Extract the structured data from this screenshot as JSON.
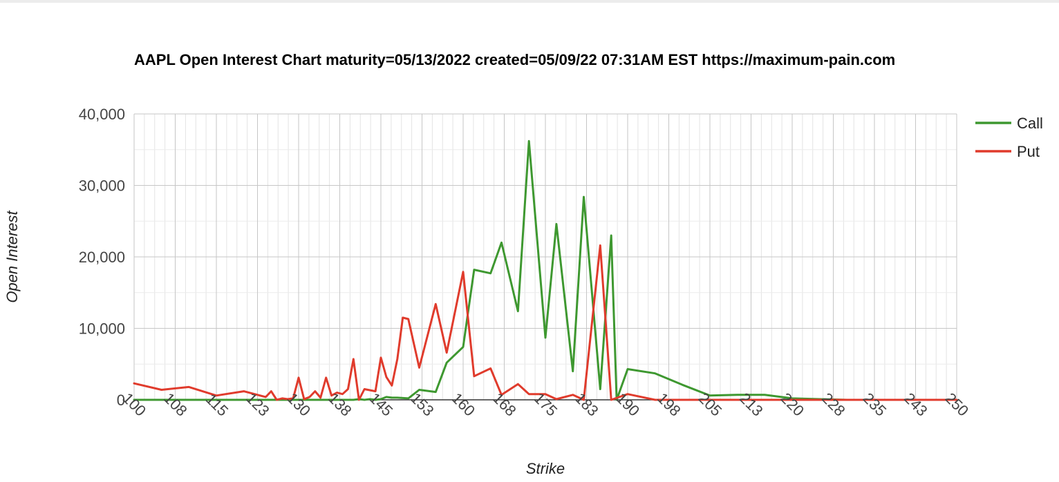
{
  "chart_data": {
    "type": "line",
    "title": "AAPL Open Interest Chart maturity=05/13/2022 created=05/09/22 07:31AM EST https://maximum-pain.com",
    "xlabel": "Strike",
    "ylabel": "Open Interest",
    "xlim": [
      100,
      250
    ],
    "ylim": [
      0,
      40000
    ],
    "x_ticks": [
      "100",
      "108",
      "115",
      "123",
      "130",
      "138",
      "145",
      "153",
      "160",
      "168",
      "175",
      "183",
      "190",
      "198",
      "205",
      "213",
      "220",
      "228",
      "235",
      "243",
      "250"
    ],
    "y_ticks": [
      "0",
      "10,000",
      "20,000",
      "30,000",
      "40,000"
    ],
    "grid": true,
    "legend_position": "right",
    "series": [
      {
        "name": "Call",
        "color": "#3e9830",
        "points": [
          [
            100,
            0
          ],
          [
            105,
            0
          ],
          [
            110,
            0
          ],
          [
            115,
            0
          ],
          [
            120,
            0
          ],
          [
            125,
            0
          ],
          [
            130,
            0
          ],
          [
            132,
            0
          ],
          [
            134,
            0
          ],
          [
            136,
            0
          ],
          [
            138,
            0
          ],
          [
            140,
            0
          ],
          [
            141,
            100
          ],
          [
            142,
            0
          ],
          [
            143,
            100
          ],
          [
            144,
            0
          ],
          [
            145,
            100
          ],
          [
            146,
            400
          ],
          [
            147,
            300
          ],
          [
            148,
            300
          ],
          [
            150,
            200
          ],
          [
            152,
            1400
          ],
          [
            155,
            1100
          ],
          [
            157,
            5200
          ],
          [
            160,
            7400
          ],
          [
            162,
            18200
          ],
          [
            165,
            17700
          ],
          [
            167,
            22000
          ],
          [
            170,
            12400
          ],
          [
            172,
            36200
          ],
          [
            175,
            8700
          ],
          [
            177,
            24600
          ],
          [
            180,
            4000
          ],
          [
            182,
            28400
          ],
          [
            185,
            1500
          ],
          [
            187,
            23000
          ],
          [
            188,
            0
          ],
          [
            190,
            4300
          ],
          [
            195,
            3700
          ],
          [
            200,
            2100
          ],
          [
            205,
            600
          ],
          [
            210,
            700
          ],
          [
            215,
            700
          ],
          [
            220,
            200
          ],
          [
            225,
            100
          ],
          [
            230,
            0
          ],
          [
            235,
            0
          ],
          [
            240,
            0
          ],
          [
            245,
            0
          ],
          [
            250,
            0
          ]
        ]
      },
      {
        "name": "Put",
        "color": "#e03b2c",
        "points": [
          [
            100,
            2300
          ],
          [
            105,
            1400
          ],
          [
            110,
            1800
          ],
          [
            115,
            600
          ],
          [
            120,
            1200
          ],
          [
            124,
            400
          ],
          [
            125,
            1200
          ],
          [
            126,
            0
          ],
          [
            127,
            200
          ],
          [
            128,
            100
          ],
          [
            129,
            200
          ],
          [
            130,
            3100
          ],
          [
            131,
            100
          ],
          [
            132,
            400
          ],
          [
            133,
            1200
          ],
          [
            134,
            300
          ],
          [
            135,
            3100
          ],
          [
            136,
            600
          ],
          [
            137,
            1000
          ],
          [
            138,
            800
          ],
          [
            139,
            1500
          ],
          [
            140,
            5700
          ],
          [
            141,
            0
          ],
          [
            142,
            1500
          ],
          [
            144,
            1200
          ],
          [
            145,
            5900
          ],
          [
            146,
            3200
          ],
          [
            147,
            2000
          ],
          [
            148,
            5700
          ],
          [
            149,
            11500
          ],
          [
            150,
            11300
          ],
          [
            152,
            4500
          ],
          [
            155,
            13400
          ],
          [
            157,
            6600
          ],
          [
            160,
            17900
          ],
          [
            162,
            3300
          ],
          [
            165,
            4400
          ],
          [
            167,
            700
          ],
          [
            170,
            2200
          ],
          [
            172,
            800
          ],
          [
            175,
            800
          ],
          [
            177,
            100
          ],
          [
            180,
            700
          ],
          [
            182,
            0
          ],
          [
            185,
            21600
          ],
          [
            187,
            0
          ],
          [
            190,
            800
          ],
          [
            195,
            0
          ],
          [
            200,
            0
          ],
          [
            210,
            0
          ],
          [
            220,
            0
          ],
          [
            230,
            0
          ],
          [
            240,
            0
          ],
          [
            250,
            0
          ]
        ]
      }
    ]
  }
}
